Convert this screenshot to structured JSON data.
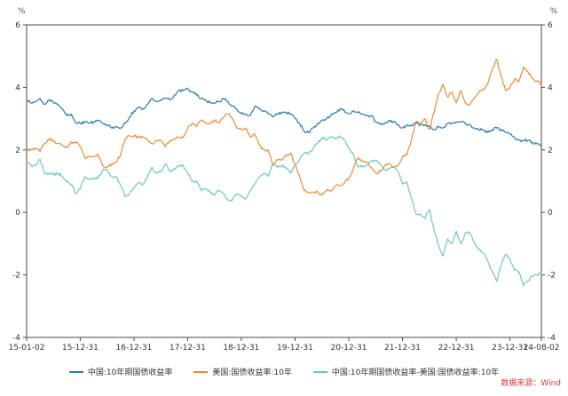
{
  "source": "数据来源：Wind",
  "source_color": "#d93a3a",
  "chart_data": {
    "type": "line",
    "title": "",
    "ylabel_left": "%",
    "ylabel_right": "%",
    "ylim": [
      -4,
      6
    ],
    "yticks": [
      -4,
      -2,
      0,
      2,
      4,
      6
    ],
    "grid": false,
    "legend_position": "bottom",
    "x_tick_labels": [
      "15-01-02",
      "15-12-31",
      "16-12-31",
      "17-12-31",
      "18-12-31",
      "19-12-31",
      "20-12-31",
      "21-12-31",
      "22-12-31",
      "23-12-31",
      "24-08-02"
    ],
    "x_tick_positions": [
      0,
      0.1041,
      0.2086,
      0.3128,
      0.417,
      0.5215,
      0.6259,
      0.7302,
      0.8346,
      0.9389,
      1.0
    ],
    "x_unit": "monthly points from 2015-01 to 2024-08",
    "series": [
      {
        "key": "china-10y",
        "name": "中国:10年期国债收益率",
        "color": "#2d7aa6",
        "values": [
          3.6,
          3.5,
          3.55,
          3.65,
          3.45,
          3.6,
          3.5,
          3.45,
          3.3,
          3.1,
          3.15,
          2.85,
          2.85,
          2.9,
          2.85,
          2.9,
          2.95,
          2.85,
          2.8,
          2.7,
          2.75,
          2.7,
          2.85,
          3.05,
          3.25,
          3.35,
          3.3,
          3.45,
          3.65,
          3.55,
          3.6,
          3.65,
          3.6,
          3.75,
          3.9,
          3.9,
          3.95,
          3.85,
          3.75,
          3.65,
          3.6,
          3.5,
          3.5,
          3.55,
          3.65,
          3.55,
          3.4,
          3.3,
          3.15,
          3.15,
          3.1,
          3.4,
          3.3,
          3.25,
          3.15,
          3.05,
          3.15,
          3.2,
          3.2,
          3.15,
          3.0,
          2.85,
          2.6,
          2.55,
          2.7,
          2.85,
          2.95,
          3.0,
          3.1,
          3.2,
          3.3,
          3.25,
          3.15,
          3.25,
          3.2,
          3.15,
          3.1,
          3.1,
          2.9,
          2.85,
          2.85,
          2.95,
          2.9,
          2.8,
          2.7,
          2.8,
          2.8,
          2.85,
          2.8,
          2.8,
          2.75,
          2.65,
          2.75,
          2.7,
          2.85,
          2.85,
          2.9,
          2.9,
          2.85,
          2.8,
          2.7,
          2.65,
          2.65,
          2.55,
          2.65,
          2.7,
          2.65,
          2.55,
          2.5,
          2.4,
          2.3,
          2.3,
          2.3,
          2.25,
          2.2,
          2.15
        ]
      },
      {
        "key": "us-10y",
        "name": "美国:国债收益率:10年",
        "color": "#ee8a33",
        "values": [
          2.0,
          2.0,
          2.05,
          1.95,
          2.2,
          2.35,
          2.3,
          2.2,
          2.15,
          2.1,
          2.25,
          2.25,
          2.1,
          1.75,
          1.8,
          1.8,
          1.85,
          1.5,
          1.45,
          1.55,
          1.6,
          1.85,
          2.35,
          2.45,
          2.45,
          2.4,
          2.4,
          2.3,
          2.2,
          2.3,
          2.3,
          2.1,
          2.3,
          2.35,
          2.4,
          2.4,
          2.7,
          2.85,
          2.75,
          2.95,
          2.85,
          2.85,
          2.95,
          2.85,
          3.05,
          3.15,
          3.0,
          2.7,
          2.65,
          2.7,
          2.4,
          2.5,
          2.15,
          2.0,
          2.0,
          1.5,
          1.7,
          1.7,
          1.8,
          1.9,
          1.5,
          1.15,
          0.7,
          0.65,
          0.65,
          0.65,
          0.55,
          0.7,
          0.68,
          0.85,
          0.85,
          0.95,
          1.1,
          1.4,
          1.75,
          1.65,
          1.6,
          1.45,
          1.25,
          1.3,
          1.5,
          1.55,
          1.45,
          1.5,
          1.8,
          1.85,
          2.35,
          2.9,
          2.85,
          3.0,
          2.65,
          3.2,
          3.8,
          4.1,
          3.7,
          3.85,
          3.5,
          3.9,
          3.5,
          3.45,
          3.65,
          3.85,
          3.95,
          4.1,
          4.55,
          4.9,
          4.35,
          3.9,
          4.0,
          4.25,
          4.2,
          4.65,
          4.5,
          4.3,
          4.2,
          4.1
        ]
      },
      {
        "key": "spread-cn-us",
        "name": "中国:10年期国债收益率-美国:国债收益率:10年",
        "color": "#6fc7c5",
        "values": [
          1.6,
          1.5,
          1.5,
          1.7,
          1.25,
          1.25,
          1.2,
          1.25,
          1.15,
          1.0,
          0.9,
          0.6,
          0.75,
          1.15,
          1.05,
          1.1,
          1.1,
          1.35,
          1.35,
          1.15,
          1.15,
          0.85,
          0.5,
          0.6,
          0.8,
          0.95,
          0.9,
          1.15,
          1.45,
          1.25,
          1.3,
          1.55,
          1.3,
          1.4,
          1.5,
          1.5,
          1.25,
          1.0,
          1.0,
          0.7,
          0.75,
          0.65,
          0.55,
          0.7,
          0.6,
          0.4,
          0.4,
          0.6,
          0.5,
          0.45,
          0.7,
          0.9,
          1.15,
          1.25,
          1.15,
          1.55,
          1.45,
          1.5,
          1.4,
          1.25,
          1.5,
          1.7,
          1.9,
          1.9,
          2.05,
          2.2,
          2.4,
          2.3,
          2.42,
          2.35,
          2.45,
          2.3,
          2.05,
          1.85,
          1.45,
          1.5,
          1.5,
          1.65,
          1.65,
          1.55,
          1.35,
          1.4,
          1.45,
          1.3,
          0.9,
          0.95,
          0.45,
          -0.05,
          -0.05,
          -0.2,
          0.1,
          -0.55,
          -1.05,
          -1.4,
          -0.85,
          -1.0,
          -0.6,
          -1.0,
          -0.65,
          -0.65,
          -0.95,
          -1.2,
          -1.3,
          -1.55,
          -1.9,
          -2.2,
          -1.7,
          -1.35,
          -1.5,
          -1.85,
          -1.9,
          -2.35,
          -2.2,
          -2.05,
          -2.0,
          -1.95
        ]
      }
    ]
  }
}
